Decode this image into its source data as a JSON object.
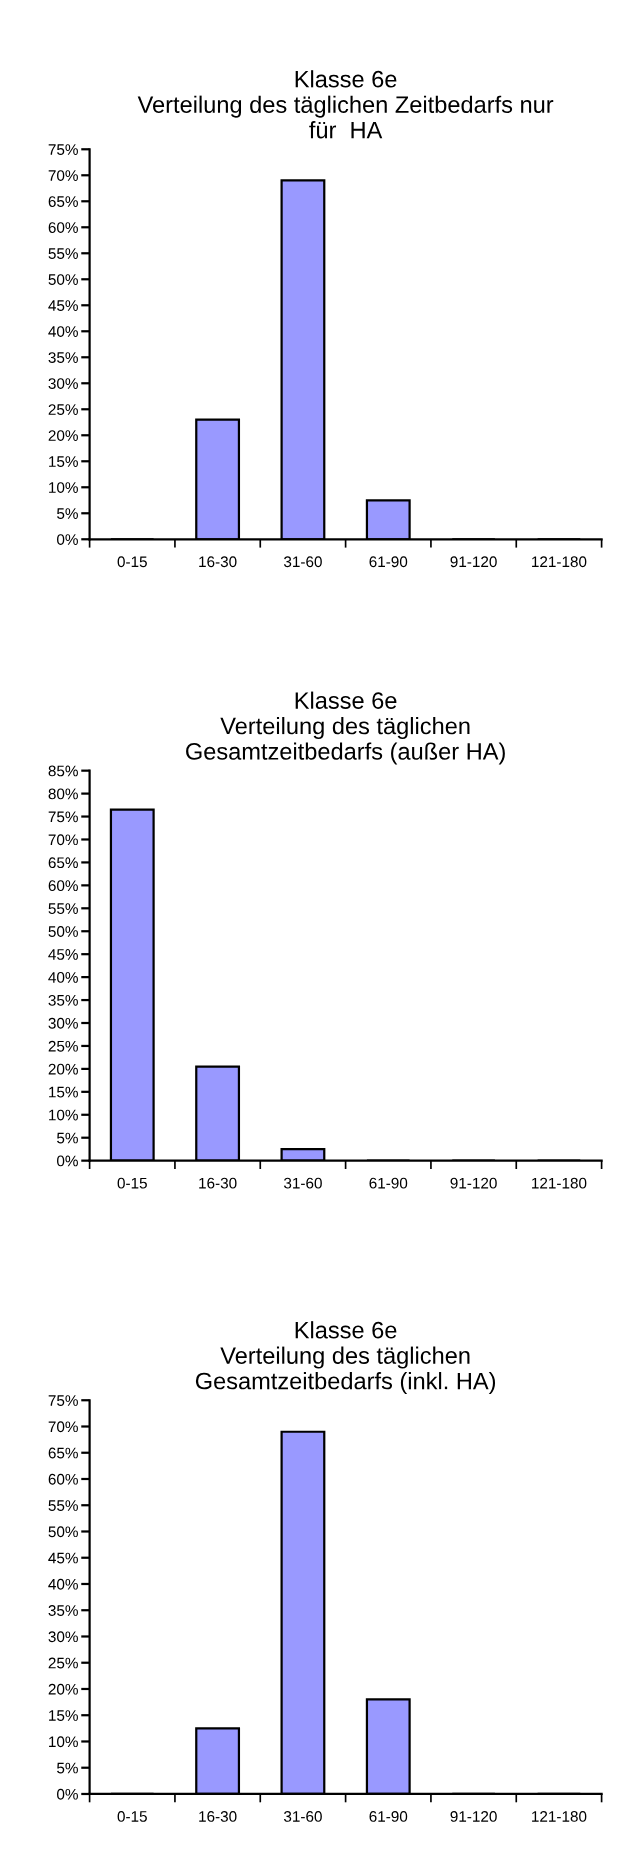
{
  "chart_data": [
    {
      "type": "bar",
      "title": "Klasse 6e\nVerteilung des täglichen Zeitbedarfs nur\nfür  HA",
      "categories": [
        "0-15",
        "16-30",
        "31-60",
        "61-90",
        "91-120",
        "121-180"
      ],
      "values": [
        0,
        23,
        69,
        7.5,
        0,
        0
      ],
      "color": "#9999ff",
      "ylim": [
        0,
        75
      ],
      "yticks": [
        {
          "value": 0,
          "label": "0%"
        },
        {
          "value": 5,
          "label": "5%"
        },
        {
          "value": 10,
          "label": "10%"
        },
        {
          "value": 15,
          "label": "15%"
        },
        {
          "value": 20,
          "label": "20%"
        },
        {
          "value": 25,
          "label": "25%"
        },
        {
          "value": 30,
          "label": "30%"
        },
        {
          "value": 35,
          "label": "35%"
        },
        {
          "value": 40,
          "label": "40%"
        },
        {
          "value": 45,
          "label": "45%"
        },
        {
          "value": 50,
          "label": "50%"
        },
        {
          "value": 55,
          "label": "55%"
        },
        {
          "value": 60,
          "label": "60%"
        },
        {
          "value": 65,
          "label": "65%"
        },
        {
          "value": 70,
          "label": "70%"
        },
        {
          "value": 75,
          "label": "75%"
        }
      ]
    },
    {
      "type": "bar",
      "title": "Klasse 6e\nVerteilung des täglichen\nGesamtzeitbedarfs (außer HA)",
      "categories": [
        "0-15",
        "16-30",
        "31-60",
        "61-90",
        "91-120",
        "121-180"
      ],
      "values": [
        76.5,
        20.5,
        2.5,
        0,
        0,
        0
      ],
      "color": "#9999ff",
      "ylim": [
        0,
        85
      ],
      "yticks": [
        {
          "value": 0,
          "label": "0%"
        },
        {
          "value": 5,
          "label": "5%"
        },
        {
          "value": 10,
          "label": "10%"
        },
        {
          "value": 15,
          "label": "15%"
        },
        {
          "value": 20,
          "label": "20%"
        },
        {
          "value": 25,
          "label": "25%"
        },
        {
          "value": 30,
          "label": "30%"
        },
        {
          "value": 35,
          "label": "35%"
        },
        {
          "value": 40,
          "label": "40%"
        },
        {
          "value": 45,
          "label": "45%"
        },
        {
          "value": 50,
          "label": "50%"
        },
        {
          "value": 55,
          "label": "55%"
        },
        {
          "value": 60,
          "label": "60%"
        },
        {
          "value": 65,
          "label": "65%"
        },
        {
          "value": 70,
          "label": "70%"
        },
        {
          "value": 75,
          "label": "75%"
        },
        {
          "value": 80,
          "label": "80%"
        },
        {
          "value": 85,
          "label": "85%"
        }
      ]
    },
    {
      "type": "bar",
      "title": "Klasse 6e\nVerteilung des täglichen\nGesamtzeitbedarfs (inkl. HA)",
      "categories": [
        "0-15",
        "16-30",
        "31-60",
        "61-90",
        "91-120",
        "121-180"
      ],
      "values": [
        0,
        12.5,
        69,
        18,
        0,
        0
      ],
      "color": "#9999ff",
      "ylim": [
        0,
        75
      ],
      "yticks": [
        {
          "value": 0,
          "label": "0%"
        },
        {
          "value": 5,
          "label": "5%"
        },
        {
          "value": 10,
          "label": "10%"
        },
        {
          "value": 15,
          "label": "15%"
        },
        {
          "value": 20,
          "label": "20%"
        },
        {
          "value": 25,
          "label": "25%"
        },
        {
          "value": 30,
          "label": "30%"
        },
        {
          "value": 35,
          "label": "35%"
        },
        {
          "value": 40,
          "label": "40%"
        },
        {
          "value": 45,
          "label": "45%"
        },
        {
          "value": 50,
          "label": "50%"
        },
        {
          "value": 55,
          "label": "55%"
        },
        {
          "value": 60,
          "label": "60%"
        },
        {
          "value": 65,
          "label": "65%"
        },
        {
          "value": 70,
          "label": "70%"
        },
        {
          "value": 75,
          "label": "75%"
        }
      ]
    }
  ]
}
